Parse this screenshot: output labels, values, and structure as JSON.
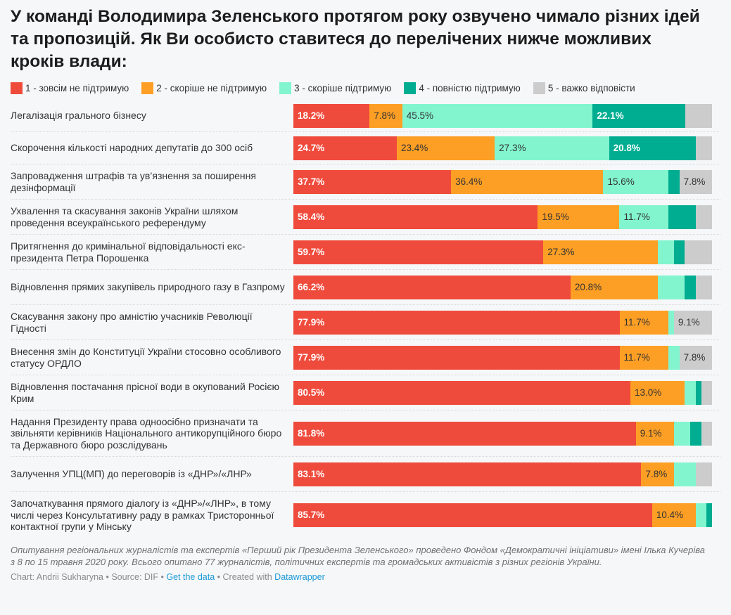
{
  "chart_data": {
    "type": "bar",
    "orientation": "horizontal",
    "stacked": true,
    "title": "У команді Володимира Зеленського протягом року озвучено чимало різних ідей та пропозицій. Як Ви особисто ставитеся до перелічених нижче можливих кроків влади:",
    "xlabel": "",
    "ylabel": "",
    "xlim": [
      0,
      100
    ],
    "unit": "%",
    "legend_position": "top-left",
    "series": [
      {
        "name": "1 - зовсім не підтримую",
        "color": "#ef4b3c",
        "label_style": "light",
        "values": [
          18.2,
          24.7,
          37.7,
          58.4,
          59.7,
          66.2,
          77.9,
          77.9,
          80.5,
          81.8,
          83.1,
          85.7
        ],
        "labels": [
          "18.2%",
          "24.7%",
          "37.7%",
          "58.4%",
          "59.7%",
          "66.2%",
          "77.9%",
          "77.9%",
          "80.5%",
          "81.8%",
          "83.1%",
          "85.7%"
        ]
      },
      {
        "name": "2 - скоріше не підтримую",
        "color": "#fe9f25",
        "label_style": "dark",
        "values": [
          7.8,
          23.4,
          36.4,
          19.5,
          27.3,
          20.8,
          11.7,
          11.7,
          13.0,
          9.1,
          7.8,
          10.4
        ],
        "labels": [
          "7.8%",
          "23.4%",
          "36.4%",
          "19.5%",
          "27.3%",
          "20.8%",
          "11.7%",
          "11.7%",
          "13.0%",
          "9.1%",
          "7.8%",
          "10.4%"
        ]
      },
      {
        "name": "3 - скоріше підтримую",
        "color": "#82f5cf",
        "label_style": "dark",
        "values": [
          45.5,
          27.3,
          15.6,
          11.7,
          3.9,
          6.5,
          1.3,
          2.6,
          2.6,
          3.9,
          5.2,
          2.6
        ],
        "labels": [
          "45.5%",
          "27.3%",
          "15.6%",
          "11.7%",
          "",
          "",
          "",
          "",
          "",
          "",
          "",
          ""
        ]
      },
      {
        "name": "4 - повністю підтримую",
        "color": "#00ad91",
        "label_style": "light",
        "values": [
          22.1,
          20.8,
          2.6,
          6.5,
          2.6,
          2.6,
          0,
          0,
          1.3,
          2.6,
          0,
          1.3
        ],
        "labels": [
          "22.1%",
          "20.8%",
          "",
          "",
          "",
          "",
          "",
          "",
          "",
          "",
          "",
          ""
        ]
      },
      {
        "name": "5 - важко відповісти",
        "color": "#cccccc",
        "label_style": "dark",
        "values": [
          6.4,
          3.8,
          7.8,
          3.9,
          6.5,
          3.9,
          9.1,
          7.8,
          2.6,
          2.6,
          3.9,
          0
        ],
        "labels": [
          "",
          "",
          "7.8%",
          "",
          "",
          "",
          "9.1%",
          "7.8%",
          "",
          "",
          "",
          ""
        ]
      }
    ],
    "categories": [
      "Легалізація грального бізнесу",
      "Скорочення кількості народних депутатів до 300 осіб",
      "Запровадження штрафів та ув’язнення за поширення дезінформації",
      "Ухвалення та скасування законів України шляхом проведення всеукраїнського референдуму",
      "Притягнення до кримінальної відповідальності екс-президента Петра Порошенка",
      "Відновлення прямих закупівель природного газу в Газпрому",
      "Скасування закону про амністію учасників Революції Гідності",
      "Внесення змін до Конституції України стосовно особливого статусу ОРДЛО",
      "Відновлення постачання прісної води в окупований Росією Крим",
      "Надання Президенту права одноосібно призначати та звільняти керівників Національного антикорупційного бюро та Державного бюро розслідувань",
      "Залучення УПЦ(МП) до переговорів із «ДНР»/«ЛНР»",
      "Започаткування прямого діалогу із «ДНР»/«ЛНР», в тому числі через Консультативну раду в рамках Тристоронньої контактної групи у Мінську"
    ]
  },
  "notes": "Опитування регіональних журналістів та експертів «Перший рік Президента Зеленського» проведено Фондом «Демократичні ініціативи» імені Ілька Кучеріва з 8 по 15 травня 2020 року. Всього опитано 77 журналістів, політичних експертів та громадських активістів з різних регіонів України.",
  "byline": {
    "chart_by": "Chart: Andrii Sukharyna",
    "separator": " • ",
    "source": "Source: DIF",
    "get_data": "Get the data",
    "created_with": "Created with",
    "datawrapper": "Datawrapper",
    "link_color": "#1d9ad6"
  }
}
